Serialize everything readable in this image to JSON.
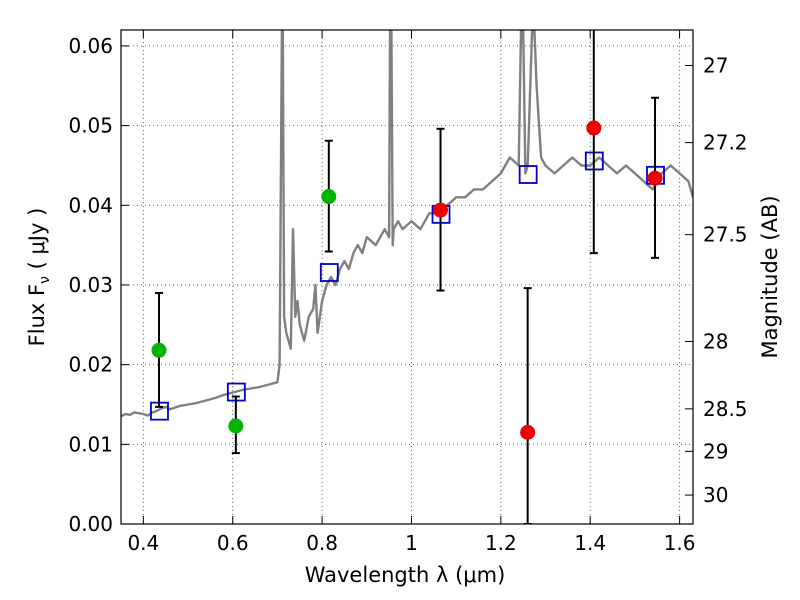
{
  "chart_data": {
    "type": "scatter",
    "xlabel": "Wavelength  λ (μm)",
    "ylabel": "Flux  F",
    "ylabel_sub": "ν",
    "ylabel_unit": "  ( μJy )",
    "y2label": "Magnitude (AB)",
    "xlim": [
      0.35,
      1.63
    ],
    "ylim": [
      0.0,
      0.062
    ],
    "grid": true,
    "x_ticks": [
      0.4,
      0.6,
      0.8,
      1.0,
      1.2,
      1.4,
      1.6
    ],
    "x_tick_labels": [
      "0.4",
      "0.6",
      "0.8",
      "1",
      "1.2",
      "1.4",
      "1.6"
    ],
    "y_ticks": [
      0.0,
      0.01,
      0.02,
      0.03,
      0.04,
      0.05,
      0.06
    ],
    "y_tick_labels": [
      "0.00",
      "0.01",
      "0.02",
      "0.03",
      "0.04",
      "0.05",
      "0.06"
    ],
    "y2_tick_labels": [
      "27",
      "27.2",
      "27.5",
      "28",
      "28.5",
      "29",
      "30"
    ],
    "model_spectrum": {
      "color": "#808080",
      "x": [
        0.35,
        0.36,
        0.37,
        0.38,
        0.39,
        0.4,
        0.41,
        0.42,
        0.43,
        0.44,
        0.45,
        0.46,
        0.47,
        0.48,
        0.49,
        0.5,
        0.52,
        0.54,
        0.56,
        0.58,
        0.6,
        0.62,
        0.64,
        0.66,
        0.68,
        0.7,
        0.705,
        0.71,
        0.712,
        0.715,
        0.72,
        0.73,
        0.735,
        0.74,
        0.745,
        0.75,
        0.76,
        0.77,
        0.78,
        0.785,
        0.79,
        0.8,
        0.81,
        0.82,
        0.83,
        0.84,
        0.85,
        0.86,
        0.87,
        0.88,
        0.89,
        0.9,
        0.92,
        0.94,
        0.95,
        0.952,
        0.955,
        0.958,
        0.96,
        0.97,
        0.98,
        1.0,
        1.02,
        1.04,
        1.06,
        1.08,
        1.1,
        1.12,
        1.14,
        1.16,
        1.18,
        1.2,
        1.22,
        1.24,
        1.245,
        1.25,
        1.255,
        1.26,
        1.27,
        1.275,
        1.28,
        1.29,
        1.3,
        1.32,
        1.34,
        1.36,
        1.38,
        1.4,
        1.42,
        1.44,
        1.46,
        1.48,
        1.5,
        1.52,
        1.54,
        1.56,
        1.58,
        1.6,
        1.62,
        1.63
      ],
      "y": [
        0.0135,
        0.0138,
        0.0137,
        0.014,
        0.0139,
        0.0138,
        0.0136,
        0.014,
        0.0142,
        0.0145,
        0.0147,
        0.0144,
        0.0146,
        0.0148,
        0.0149,
        0.015,
        0.0152,
        0.0155,
        0.0158,
        0.0162,
        0.0165,
        0.0168,
        0.017,
        0.0172,
        0.0175,
        0.0178,
        0.02,
        0.062,
        0.062,
        0.026,
        0.024,
        0.022,
        0.037,
        0.026,
        0.028,
        0.025,
        0.023,
        0.026,
        0.027,
        0.03,
        0.024,
        0.028,
        0.03,
        0.031,
        0.03,
        0.032,
        0.033,
        0.032,
        0.034,
        0.035,
        0.034,
        0.036,
        0.035,
        0.037,
        0.036,
        0.062,
        0.062,
        0.035,
        0.037,
        0.038,
        0.037,
        0.038,
        0.037,
        0.039,
        0.039,
        0.04,
        0.041,
        0.041,
        0.042,
        0.042,
        0.043,
        0.044,
        0.046,
        0.045,
        0.062,
        0.062,
        0.044,
        0.045,
        0.062,
        0.062,
        0.055,
        0.046,
        0.045,
        0.044,
        0.045,
        0.046,
        0.045,
        0.045,
        0.046,
        0.045,
        0.044,
        0.045,
        0.044,
        0.043,
        0.042,
        0.044,
        0.045,
        0.044,
        0.043,
        0.041
      ]
    },
    "series": [
      {
        "marker": "square",
        "color": "#0000cc",
        "filled": false,
        "points": [
          {
            "x": 0.435,
            "y": 0.0141
          },
          {
            "x": 0.607,
            "y": 0.0165
          },
          {
            "x": 0.815,
            "y": 0.0315
          },
          {
            "x": 1.065,
            "y": 0.0388
          },
          {
            "x": 1.26,
            "y": 0.0438
          },
          {
            "x": 1.408,
            "y": 0.0455
          },
          {
            "x": 1.545,
            "y": 0.0437
          }
        ]
      },
      {
        "marker": "circle",
        "color": "#00b400",
        "filled": true,
        "points": [
          {
            "x": 0.435,
            "y": 0.0218,
            "err_low": 0.0071,
            "err_high": 0.0072
          },
          {
            "x": 0.607,
            "y": 0.0123,
            "err_low": 0.0034,
            "err_high": 0.0037
          },
          {
            "x": 0.815,
            "y": 0.0411,
            "err_low": 0.0069,
            "err_high": 0.007
          }
        ]
      },
      {
        "marker": "circle",
        "color": "#ee0000",
        "filled": true,
        "points": [
          {
            "x": 1.065,
            "y": 0.0394,
            "err_low": 0.0101,
            "err_high": 0.0102
          },
          {
            "x": 1.26,
            "y": 0.0115,
            "err_low": 0.0115,
            "err_high": 0.0181
          },
          {
            "x": 1.408,
            "y": 0.0497,
            "err_low": 0.0157,
            "err_high": 0.015
          },
          {
            "x": 1.545,
            "y": 0.0434,
            "err_low": 0.01,
            "err_high": 0.0101
          }
        ]
      }
    ]
  }
}
